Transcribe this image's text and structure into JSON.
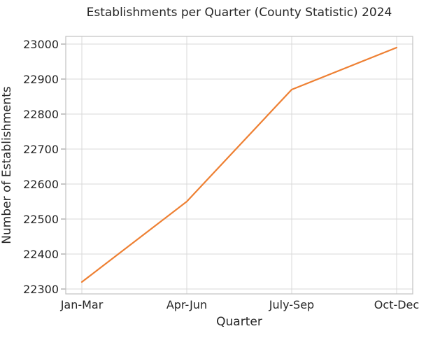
{
  "chart_data": {
    "type": "line",
    "title": "Establishments per Quarter (County Statistic) 2024",
    "xlabel": "Quarter",
    "ylabel": "Number of Establishments",
    "categories": [
      "Jan-Mar",
      "Apr-Jun",
      "July-Sep",
      "Oct-Dec"
    ],
    "series": [
      {
        "name": "Establishments",
        "values": [
          22320,
          22550,
          22870,
          22990
        ]
      }
    ],
    "yticks": [
      22300,
      22400,
      22500,
      22600,
      22700,
      22800,
      22900,
      23000
    ],
    "ylim": [
      22286,
      23022
    ],
    "grid": true,
    "legend_position": "none",
    "colors": {
      "line": "#ee8033",
      "grid": "#d9d9d9",
      "spine": "#c2c2c2",
      "tick_mark": "#8f8f8f",
      "text": "#262626",
      "background": "#ffffff"
    }
  }
}
